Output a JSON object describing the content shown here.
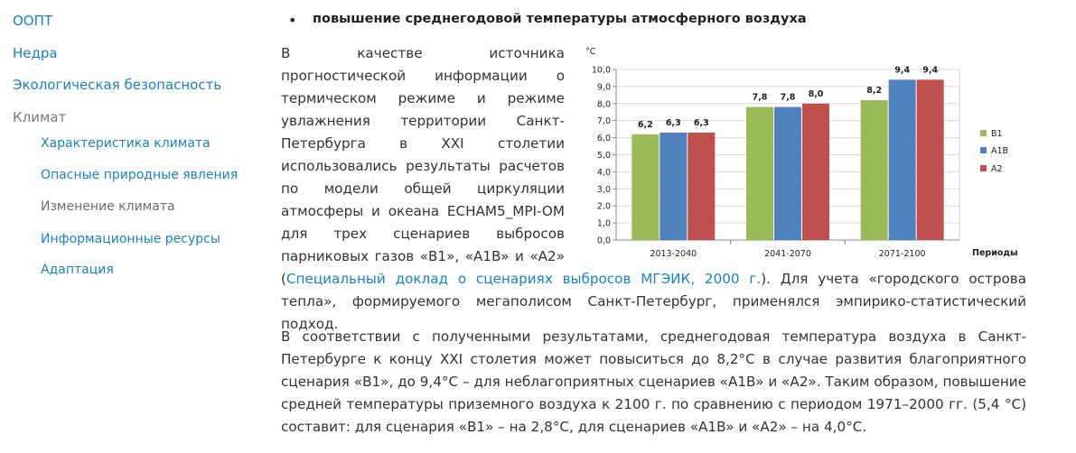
{
  "sidebar": {
    "items": [
      {
        "label": "ООПТ"
      },
      {
        "label": "Недра"
      },
      {
        "label": "Экологическая безопасность"
      },
      {
        "label": "Климат"
      }
    ],
    "subitems": [
      {
        "label": "Характеристика климата"
      },
      {
        "label": "Опасные природные явления"
      },
      {
        "label": "Изменение климата"
      },
      {
        "label": "Информационные ресурсы"
      },
      {
        "label": "Адаптация"
      }
    ]
  },
  "main": {
    "bullet_heading": "повышение среднегодовой температуры атмосферного воздуха",
    "para1_text": "В качестве источника прогностической информации о термическом режиме и режиме увлажнения территории Санкт-Петербурга в XXI столетии использовались результаты расчетов по модели общей циркуляции атмосферы и океана ECHAM5_MPI-OM для трех сценариев выбросов парниковых газов «B1», «A1B» и «A2» (",
    "para1_link": "Специальный доклад о сценариях выбросов МГЭИК, 2000 г.",
    "para1_tail": "). Для учета «городского острова тепла», формируемого мегаполисом Санкт-Петербург, применялся эмпирико-статистический подход.",
    "para2": "В соответствии с полученными результатами, среднегодовая температура воздуха в Санкт-Петербурге к концу XXI столетия может повыситься до 8,2°C в случае развития благоприятного сценария «B1», до 9,4°C – для неблагоприятных сценариев «A1B» и «A2». Таким образом, повышение средней температуры приземного воздуха к 2100 г. по сравнению с периодом 1971–2000 гг. (5,4 °С) составит: для сценария «B1» – на 2,8°С, для сценариев «A1B» и «A2» – на 4,0°С."
  },
  "chart_data": {
    "type": "bar",
    "title": "",
    "ylabel": "°С",
    "xlabel": "Периоды",
    "categories": [
      "2013-2040",
      "2041-2070",
      "2071-2100"
    ],
    "series": [
      {
        "name": "B1",
        "values": [
          6.2,
          7.8,
          8.2
        ],
        "color": "#9bbb59"
      },
      {
        "name": "A1B",
        "values": [
          6.3,
          7.8,
          9.4
        ],
        "color": "#4f81bd"
      },
      {
        "name": "A2",
        "values": [
          6.3,
          8.0,
          9.4
        ],
        "color": "#c0504d"
      }
    ],
    "data_labels": [
      [
        "6,2",
        "6,3",
        "6,3"
      ],
      [
        "7,8",
        "7,8",
        "8,0"
      ],
      [
        "8,2",
        "9,4",
        "9,4"
      ]
    ],
    "ylim": [
      0,
      10
    ],
    "yticks": [
      "0,0",
      "1,0",
      "2,0",
      "3,0",
      "4,0",
      "5,0",
      "6,0",
      "7,0",
      "8,0",
      "9,0",
      "10,0"
    ],
    "grid": true,
    "legend": "right"
  }
}
